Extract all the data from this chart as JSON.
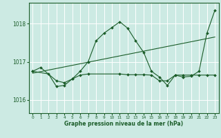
{
  "xlabel": "Graphe pression niveau de la mer (hPa)",
  "bg_color": "#cceae3",
  "grid_color": "#ffffff",
  "line_color": "#1a5c28",
  "text_color": "#1a5c28",
  "ylim": [
    1015.65,
    1018.55
  ],
  "xlim": [
    -0.5,
    23.5
  ],
  "yticks": [
    1016,
    1017,
    1018
  ],
  "xticks": [
    0,
    1,
    2,
    3,
    4,
    5,
    6,
    7,
    8,
    9,
    10,
    11,
    12,
    13,
    14,
    15,
    16,
    17,
    18,
    19,
    20,
    21,
    22,
    23
  ],
  "series1_x": [
    0,
    1,
    3,
    4,
    5,
    6,
    7,
    8,
    9,
    10,
    11,
    12,
    13,
    14,
    15,
    16,
    17,
    18,
    19,
    20,
    21,
    22,
    23
  ],
  "series1_y": [
    1016.75,
    1016.85,
    1016.5,
    1016.45,
    1016.55,
    1016.75,
    1017.0,
    1017.55,
    1017.75,
    1017.9,
    1018.05,
    1017.88,
    1017.55,
    1017.25,
    1016.75,
    1016.6,
    1016.38,
    1016.65,
    1016.6,
    1016.62,
    1016.75,
    1017.75,
    1018.35
  ],
  "series2_x": [
    0,
    2,
    3,
    4,
    5,
    6,
    7,
    11,
    12,
    13,
    14,
    15,
    16,
    17,
    18,
    19,
    20,
    21,
    22,
    23
  ],
  "series2_y": [
    1016.75,
    1016.68,
    1016.35,
    1016.38,
    1016.55,
    1016.65,
    1016.68,
    1016.68,
    1016.66,
    1016.66,
    1016.66,
    1016.65,
    1016.5,
    1016.5,
    1016.65,
    1016.65,
    1016.65,
    1016.65,
    1016.65,
    1016.65
  ],
  "trend_x": [
    0,
    23
  ],
  "trend_y": [
    1016.7,
    1017.65
  ]
}
